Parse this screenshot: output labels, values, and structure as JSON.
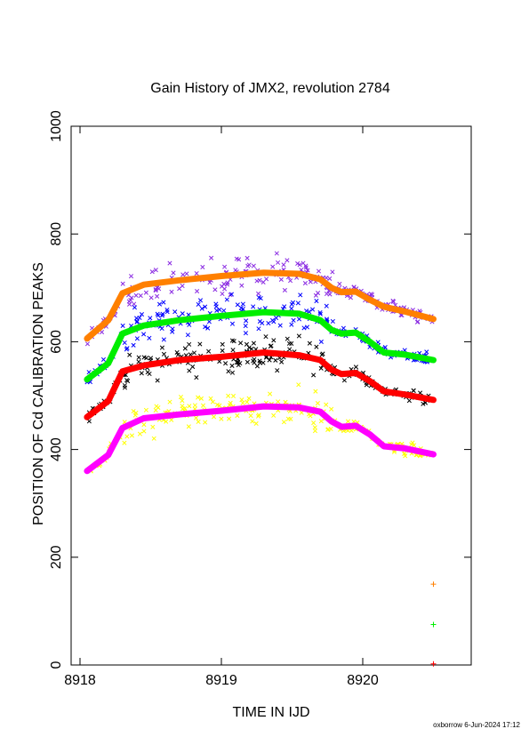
{
  "chart_data": {
    "type": "scatter",
    "title": "Gain History of JMX2, revolution 2784",
    "xlabel": "TIME IN IJD",
    "ylabel": "POSITION OF Cd CALIBRATION PEAKS",
    "xlim": [
      8918,
      8920.7
    ],
    "ylim": [
      0,
      1000
    ],
    "x_ticks": [
      "8918",
      "8919",
      "8920"
    ],
    "y_ticks": [
      "0",
      "200",
      "400",
      "600",
      "800",
      "1000"
    ],
    "grid": false,
    "footer": "oxborrow  6-Jun-2024 17:12",
    "series": [
      {
        "color": "#ff8000",
        "style": "line",
        "points": [
          [
            8918.05,
            606
          ],
          [
            8918.2,
            640
          ],
          [
            8918.3,
            690
          ],
          [
            8918.45,
            706
          ],
          [
            8918.7,
            714
          ],
          [
            8919.0,
            722
          ],
          [
            8919.3,
            728
          ],
          [
            8919.55,
            726
          ],
          [
            8919.7,
            716
          ],
          [
            8919.78,
            700
          ],
          [
            8919.85,
            692
          ],
          [
            8919.95,
            693
          ],
          [
            8920.05,
            678
          ],
          [
            8920.15,
            665
          ],
          [
            8920.3,
            656
          ],
          [
            8920.5,
            642
          ]
        ]
      },
      {
        "color": "#00ee00",
        "style": "line",
        "points": [
          [
            8918.05,
            530
          ],
          [
            8918.2,
            560
          ],
          [
            8918.3,
            615
          ],
          [
            8918.45,
            630
          ],
          [
            8918.7,
            640
          ],
          [
            8919.0,
            648
          ],
          [
            8919.3,
            655
          ],
          [
            8919.55,
            652
          ],
          [
            8919.7,
            640
          ],
          [
            8919.78,
            622
          ],
          [
            8919.85,
            615
          ],
          [
            8919.95,
            617
          ],
          [
            8920.05,
            600
          ],
          [
            8920.15,
            580
          ],
          [
            8920.3,
            576
          ],
          [
            8920.5,
            566
          ]
        ]
      },
      {
        "color": "#ff0000",
        "style": "line",
        "points": [
          [
            8918.05,
            460
          ],
          [
            8918.2,
            490
          ],
          [
            8918.3,
            545
          ],
          [
            8918.45,
            556
          ],
          [
            8918.7,
            566
          ],
          [
            8919.0,
            572
          ],
          [
            8919.3,
            580
          ],
          [
            8919.55,
            575
          ],
          [
            8919.7,
            566
          ],
          [
            8919.78,
            548
          ],
          [
            8919.85,
            540
          ],
          [
            8919.95,
            542
          ],
          [
            8920.05,
            527
          ],
          [
            8920.15,
            508
          ],
          [
            8920.3,
            502
          ],
          [
            8920.5,
            492
          ]
        ]
      },
      {
        "color": "#ff00ff",
        "style": "line",
        "points": [
          [
            8918.05,
            360
          ],
          [
            8918.2,
            390
          ],
          [
            8918.3,
            440
          ],
          [
            8918.45,
            458
          ],
          [
            8918.7,
            465
          ],
          [
            8919.0,
            472
          ],
          [
            8919.3,
            480
          ],
          [
            8919.55,
            478
          ],
          [
            8919.7,
            470
          ],
          [
            8919.78,
            452
          ],
          [
            8919.85,
            442
          ],
          [
            8919.95,
            444
          ],
          [
            8920.05,
            428
          ],
          [
            8920.15,
            406
          ],
          [
            8920.3,
            402
          ],
          [
            8920.5,
            391
          ]
        ]
      },
      {
        "color": "#8a2be2",
        "style": "scatter",
        "center": "#ff8000",
        "spread": 14
      },
      {
        "color": "#0000ff",
        "style": "scatter",
        "center": "#00ee00",
        "spread": 14
      },
      {
        "color": "#000000",
        "style": "scatter",
        "center": "#ff0000",
        "spread": 14
      },
      {
        "color": "#ffff00",
        "style": "scatter",
        "center": "#ff00ff",
        "spread": 14
      }
    ],
    "marker_points": [
      {
        "x": 8920.5,
        "y": 150,
        "color": "#ff8000"
      },
      {
        "x": 8920.5,
        "y": 75,
        "color": "#00ee00"
      },
      {
        "x": 8920.5,
        "y": 2,
        "color": "#ff0000"
      }
    ]
  }
}
